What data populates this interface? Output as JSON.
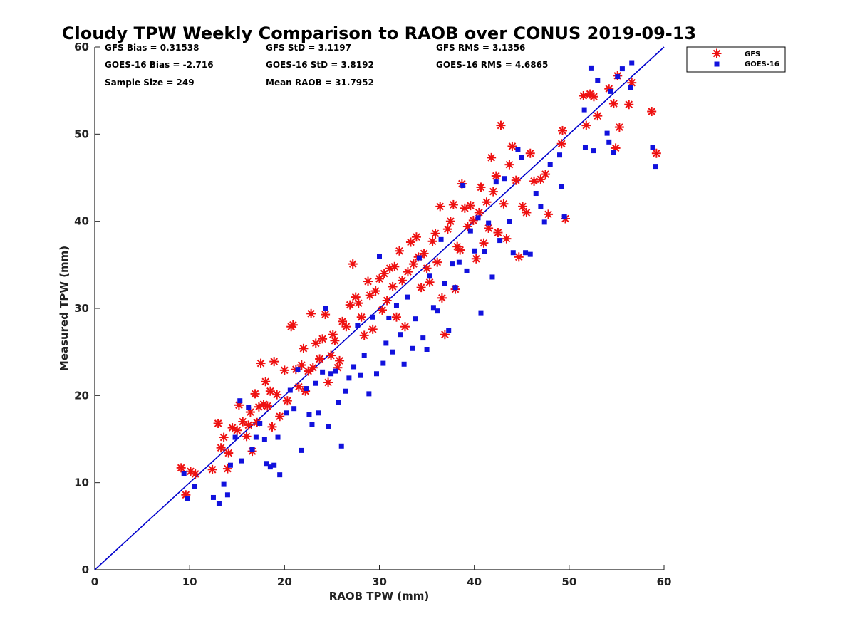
{
  "chart_data": {
    "type": "scatter",
    "title": "Cloudy TPW Weekly Comparison to RAOB over CONUS 2019-09-13",
    "xlabel": "RAOB TPW (mm)",
    "ylabel": "Measured TPW (mm)",
    "xlim": [
      0,
      60
    ],
    "ylim": [
      0,
      60
    ],
    "xticks": [
      "0",
      "10",
      "20",
      "30",
      "40",
      "50",
      "60"
    ],
    "yticks": [
      "0",
      "10",
      "20",
      "30",
      "40",
      "50",
      "60"
    ],
    "grid": false,
    "legend_position": "outside-top-right",
    "one_to_one_line": {
      "color": "#0000cc"
    },
    "stats": [
      {
        "key": "gfs_bias",
        "text": "GFS Bias = 0.31538"
      },
      {
        "key": "gfs_std",
        "text": "GFS StD = 3.1197"
      },
      {
        "key": "gfs_rms",
        "text": "GFS RMS = 3.1356"
      },
      {
        "key": "goes_bias",
        "text": "GOES-16 Bias = -2.716"
      },
      {
        "key": "goes_std",
        "text": "GOES-16 StD = 3.8192"
      },
      {
        "key": "goes_rms",
        "text": "GOES-16 RMS = 4.6865"
      },
      {
        "key": "sample_size",
        "text": "Sample Size = 249"
      },
      {
        "key": "mean_raob",
        "text": "Mean RAOB = 31.7952"
      }
    ],
    "series": [
      {
        "name": "GFS",
        "marker": "asterisk",
        "color": "#ee1111",
        "points": [
          [
            9.1,
            11.7
          ],
          [
            9.6,
            8.6
          ],
          [
            10.1,
            11.3
          ],
          [
            10.6,
            11.0
          ],
          [
            12.4,
            11.5
          ],
          [
            13.0,
            16.8
          ],
          [
            13.3,
            14.0
          ],
          [
            13.6,
            15.2
          ],
          [
            14.0,
            11.6
          ],
          [
            14.1,
            13.4
          ],
          [
            14.5,
            16.3
          ],
          [
            15.0,
            16.0
          ],
          [
            15.2,
            18.9
          ],
          [
            15.6,
            17.0
          ],
          [
            16.0,
            15.3
          ],
          [
            16.2,
            16.6
          ],
          [
            16.4,
            18.1
          ],
          [
            16.6,
            13.6
          ],
          [
            16.9,
            20.2
          ],
          [
            17.1,
            16.9
          ],
          [
            17.3,
            18.7
          ],
          [
            17.5,
            23.7
          ],
          [
            17.8,
            19.0
          ],
          [
            18.0,
            21.6
          ],
          [
            18.2,
            18.8
          ],
          [
            18.5,
            20.5
          ],
          [
            18.7,
            16.4
          ],
          [
            18.9,
            23.9
          ],
          [
            19.2,
            20.1
          ],
          [
            19.5,
            17.6
          ],
          [
            20.0,
            22.9
          ],
          [
            20.3,
            19.4
          ],
          [
            20.7,
            27.9
          ],
          [
            20.9,
            28.1
          ],
          [
            21.2,
            23.0
          ],
          [
            21.5,
            21.0
          ],
          [
            21.8,
            23.5
          ],
          [
            22.0,
            25.4
          ],
          [
            22.2,
            20.5
          ],
          [
            22.5,
            22.8
          ],
          [
            22.8,
            29.4
          ],
          [
            23.0,
            23.2
          ],
          [
            23.3,
            26.0
          ],
          [
            23.7,
            24.2
          ],
          [
            24.0,
            26.5
          ],
          [
            24.3,
            29.3
          ],
          [
            24.6,
            21.5
          ],
          [
            24.9,
            24.6
          ],
          [
            25.1,
            27.0
          ],
          [
            25.3,
            26.3
          ],
          [
            25.6,
            23.2
          ],
          [
            25.8,
            24.0
          ],
          [
            26.1,
            28.5
          ],
          [
            26.5,
            27.9
          ],
          [
            26.9,
            30.4
          ],
          [
            27.2,
            35.1
          ],
          [
            27.5,
            31.3
          ],
          [
            27.8,
            30.6
          ],
          [
            28.1,
            29.0
          ],
          [
            28.4,
            26.9
          ],
          [
            28.8,
            33.1
          ],
          [
            29.0,
            31.5
          ],
          [
            29.3,
            27.6
          ],
          [
            29.6,
            32.0
          ],
          [
            30.0,
            33.4
          ],
          [
            30.3,
            29.8
          ],
          [
            30.5,
            34.0
          ],
          [
            30.8,
            30.9
          ],
          [
            31.1,
            34.6
          ],
          [
            31.4,
            32.5
          ],
          [
            31.6,
            34.8
          ],
          [
            31.8,
            29.0
          ],
          [
            32.1,
            36.6
          ],
          [
            32.4,
            33.2
          ],
          [
            32.7,
            27.9
          ],
          [
            33.0,
            34.2
          ],
          [
            33.3,
            37.6
          ],
          [
            33.6,
            35.1
          ],
          [
            33.9,
            38.2
          ],
          [
            34.1,
            35.9
          ],
          [
            34.4,
            32.4
          ],
          [
            34.7,
            36.3
          ],
          [
            35.0,
            34.6
          ],
          [
            35.3,
            33.0
          ],
          [
            35.6,
            37.7
          ],
          [
            35.9,
            38.6
          ],
          [
            36.1,
            35.3
          ],
          [
            36.4,
            41.7
          ],
          [
            36.6,
            31.2
          ],
          [
            36.9,
            27.0
          ],
          [
            37.2,
            39.1
          ],
          [
            37.5,
            40.0
          ],
          [
            37.8,
            41.9
          ],
          [
            38.0,
            32.2
          ],
          [
            38.2,
            37.1
          ],
          [
            38.5,
            36.7
          ],
          [
            38.7,
            44.3
          ],
          [
            39.0,
            41.5
          ],
          [
            39.3,
            39.4
          ],
          [
            39.6,
            41.8
          ],
          [
            39.9,
            40.1
          ],
          [
            40.2,
            35.7
          ],
          [
            40.5,
            41.0
          ],
          [
            40.7,
            43.9
          ],
          [
            41.0,
            37.5
          ],
          [
            41.3,
            42.2
          ],
          [
            41.5,
            39.2
          ],
          [
            41.8,
            47.3
          ],
          [
            42.0,
            43.4
          ],
          [
            42.3,
            45.2
          ],
          [
            42.5,
            38.7
          ],
          [
            42.8,
            51.0
          ],
          [
            43.1,
            42.0
          ],
          [
            43.4,
            38.0
          ],
          [
            43.7,
            46.5
          ],
          [
            44.0,
            48.6
          ],
          [
            44.4,
            44.7
          ],
          [
            44.7,
            35.9
          ],
          [
            45.1,
            41.7
          ],
          [
            45.5,
            41.0
          ],
          [
            45.9,
            47.8
          ],
          [
            46.3,
            44.6
          ],
          [
            47.0,
            44.8
          ],
          [
            47.5,
            45.4
          ],
          [
            47.8,
            40.8
          ],
          [
            49.2,
            48.9
          ],
          [
            49.3,
            50.4
          ],
          [
            49.6,
            40.3
          ],
          [
            51.5,
            54.4
          ],
          [
            51.8,
            51.0
          ],
          [
            52.2,
            54.6
          ],
          [
            52.6,
            54.3
          ],
          [
            53.0,
            52.1
          ],
          [
            54.2,
            55.2
          ],
          [
            54.7,
            53.5
          ],
          [
            54.9,
            48.4
          ],
          [
            55.1,
            56.7
          ],
          [
            55.3,
            50.8
          ],
          [
            56.3,
            53.4
          ],
          [
            56.6,
            55.9
          ],
          [
            58.7,
            52.6
          ],
          [
            59.2,
            47.8
          ]
        ]
      },
      {
        "name": "GOES-16",
        "marker": "square",
        "color": "#1111dd",
        "points": [
          [
            9.4,
            11.0
          ],
          [
            9.8,
            8.2
          ],
          [
            10.5,
            9.6
          ],
          [
            12.5,
            8.3
          ],
          [
            13.1,
            7.6
          ],
          [
            13.6,
            9.8
          ],
          [
            14.0,
            8.6
          ],
          [
            14.3,
            12.0
          ],
          [
            14.8,
            15.2
          ],
          [
            15.3,
            19.4
          ],
          [
            15.5,
            12.5
          ],
          [
            16.2,
            18.6
          ],
          [
            16.6,
            13.8
          ],
          [
            17.0,
            15.2
          ],
          [
            17.4,
            16.8
          ],
          [
            17.9,
            15.0
          ],
          [
            18.1,
            12.2
          ],
          [
            18.5,
            11.8
          ],
          [
            18.9,
            12.0
          ],
          [
            19.3,
            15.2
          ],
          [
            19.5,
            10.9
          ],
          [
            20.2,
            18.0
          ],
          [
            20.6,
            20.6
          ],
          [
            21.0,
            18.5
          ],
          [
            21.4,
            23.0
          ],
          [
            21.8,
            13.7
          ],
          [
            22.3,
            20.8
          ],
          [
            22.6,
            17.8
          ],
          [
            22.9,
            16.7
          ],
          [
            23.3,
            21.4
          ],
          [
            23.6,
            18.0
          ],
          [
            24.0,
            22.7
          ],
          [
            24.3,
            30.0
          ],
          [
            24.6,
            16.4
          ],
          [
            24.9,
            22.5
          ],
          [
            25.4,
            22.8
          ],
          [
            25.7,
            19.2
          ],
          [
            26.0,
            14.2
          ],
          [
            26.4,
            20.5
          ],
          [
            26.8,
            22.0
          ],
          [
            27.3,
            23.3
          ],
          [
            27.7,
            28.0
          ],
          [
            28.0,
            22.3
          ],
          [
            28.4,
            24.6
          ],
          [
            28.9,
            20.2
          ],
          [
            29.3,
            29.0
          ],
          [
            29.7,
            22.5
          ],
          [
            30.0,
            36.0
          ],
          [
            30.4,
            23.7
          ],
          [
            30.7,
            26.0
          ],
          [
            31.0,
            28.9
          ],
          [
            31.4,
            25.0
          ],
          [
            31.8,
            30.3
          ],
          [
            32.2,
            27.0
          ],
          [
            32.6,
            23.6
          ],
          [
            33.0,
            31.3
          ],
          [
            33.5,
            25.4
          ],
          [
            33.8,
            28.8
          ],
          [
            34.2,
            35.8
          ],
          [
            34.6,
            26.6
          ],
          [
            35.0,
            25.3
          ],
          [
            35.3,
            33.7
          ],
          [
            35.7,
            30.1
          ],
          [
            36.1,
            29.7
          ],
          [
            36.5,
            37.9
          ],
          [
            36.9,
            32.9
          ],
          [
            37.3,
            27.5
          ],
          [
            37.7,
            35.1
          ],
          [
            38.0,
            32.4
          ],
          [
            38.4,
            35.3
          ],
          [
            38.8,
            44.1
          ],
          [
            39.2,
            34.3
          ],
          [
            39.6,
            38.9
          ],
          [
            40.0,
            36.6
          ],
          [
            40.4,
            40.4
          ],
          [
            40.7,
            29.5
          ],
          [
            41.1,
            36.5
          ],
          [
            41.5,
            39.8
          ],
          [
            41.9,
            33.6
          ],
          [
            42.3,
            44.5
          ],
          [
            42.7,
            37.8
          ],
          [
            43.2,
            44.9
          ],
          [
            43.7,
            40.0
          ],
          [
            44.1,
            36.4
          ],
          [
            44.6,
            48.2
          ],
          [
            45.0,
            47.3
          ],
          [
            45.4,
            36.4
          ],
          [
            45.9,
            36.2
          ],
          [
            46.5,
            43.2
          ],
          [
            47.0,
            41.7
          ],
          [
            47.4,
            39.9
          ],
          [
            48.0,
            46.5
          ],
          [
            49.0,
            47.6
          ],
          [
            49.2,
            44.0
          ],
          [
            49.5,
            40.5
          ],
          [
            51.6,
            52.8
          ],
          [
            51.7,
            48.5
          ],
          [
            52.3,
            57.6
          ],
          [
            52.6,
            48.1
          ],
          [
            53.0,
            56.2
          ],
          [
            54.0,
            50.1
          ],
          [
            54.2,
            49.1
          ],
          [
            54.4,
            54.9
          ],
          [
            54.7,
            47.9
          ],
          [
            55.1,
            56.6
          ],
          [
            55.6,
            57.5
          ],
          [
            56.5,
            55.3
          ],
          [
            56.6,
            58.2
          ],
          [
            58.8,
            48.5
          ],
          [
            59.1,
            46.3
          ]
        ]
      }
    ]
  }
}
